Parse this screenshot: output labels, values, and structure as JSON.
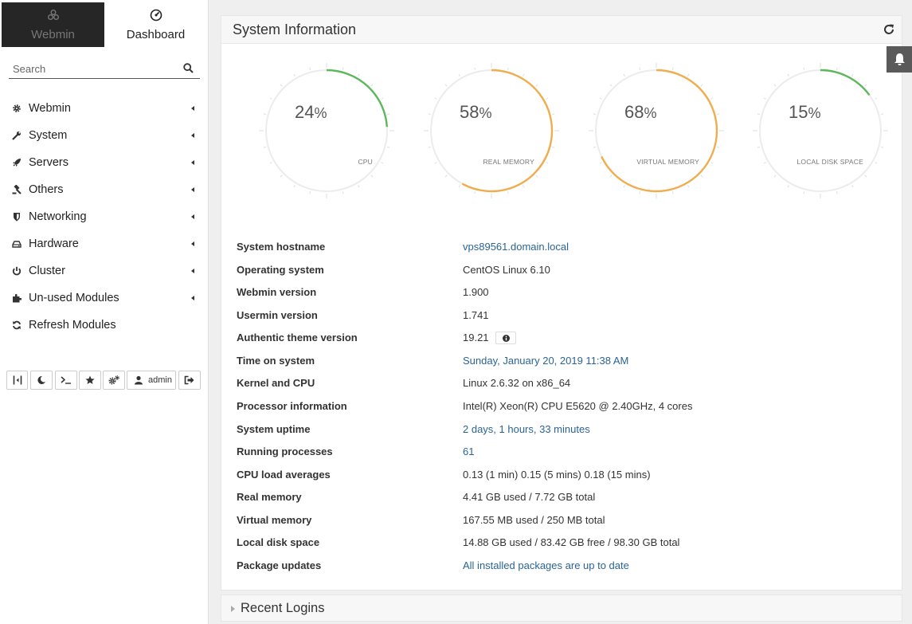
{
  "tabs": {
    "webmin": "Webmin",
    "dashboard": "Dashboard"
  },
  "search": {
    "placeholder": "Search"
  },
  "menu": [
    {
      "label": "Webmin",
      "icon": "gear-icon"
    },
    {
      "label": "System",
      "icon": "wrench-icon"
    },
    {
      "label": "Servers",
      "icon": "rocket-icon"
    },
    {
      "label": "Others",
      "icon": "gavel-icon"
    },
    {
      "label": "Networking",
      "icon": "shield-icon"
    },
    {
      "label": "Hardware",
      "icon": "hdd-icon"
    },
    {
      "label": "Cluster",
      "icon": "power-icon"
    },
    {
      "label": "Un-used Modules",
      "icon": "puzzle-icon"
    },
    {
      "label": "Refresh Modules",
      "icon": "refresh-icon"
    }
  ],
  "toolbar": {
    "user": "admin"
  },
  "panel": {
    "title": "System Information"
  },
  "gauges": [
    {
      "value": "24",
      "pct": "%",
      "label": "CPU",
      "percent": 24,
      "color": "#5cb85c"
    },
    {
      "value": "58",
      "pct": "%",
      "label": "REAL MEMORY",
      "percent": 58,
      "color": "#f0ad4e"
    },
    {
      "value": "68",
      "pct": "%",
      "label": "VIRTUAL MEMORY",
      "percent": 68,
      "color": "#f0ad4e"
    },
    {
      "value": "15",
      "pct": "%",
      "label": "LOCAL DISK SPACE",
      "percent": 15,
      "color": "#5cb85c"
    }
  ],
  "info": [
    {
      "key": "System hostname",
      "value": "vps89561.domain.local",
      "link": true
    },
    {
      "key": "Operating system",
      "value": "CentOS Linux 6.10",
      "link": false
    },
    {
      "key": "Webmin version",
      "value": "1.900",
      "link": false
    },
    {
      "key": "Usermin version",
      "value": "1.741",
      "link": false
    },
    {
      "key": "Authentic theme version",
      "value": "19.21",
      "link": false
    },
    {
      "key": "Time on system",
      "value": "Sunday, January 20, 2019 11:38 AM",
      "link": true
    },
    {
      "key": "Kernel and CPU",
      "value": "Linux 2.6.32 on x86_64",
      "link": false
    },
    {
      "key": "Processor information",
      "value": "Intel(R) Xeon(R) CPU E5620 @ 2.40GHz, 4 cores",
      "link": false
    },
    {
      "key": "System uptime",
      "value": "2 days, 1 hours, 33 minutes",
      "link": true
    },
    {
      "key": "Running processes",
      "value": "61",
      "link": true
    },
    {
      "key": "CPU load averages",
      "value": "0.13 (1 min) 0.15 (5 mins) 0.18 (15 mins)",
      "link": false
    },
    {
      "key": "Real memory",
      "value": "4.41 GB used / 7.72 GB total",
      "link": false
    },
    {
      "key": "Virtual memory",
      "value": "167.55 MB used / 250 MB total",
      "link": false
    },
    {
      "key": "Local disk space",
      "value": "14.88 GB used / 83.42 GB free / 98.30 GB total",
      "link": false
    },
    {
      "key": "Package updates",
      "value": "All installed packages are up to date",
      "link": true
    }
  ],
  "recent": {
    "title": "Recent Logins"
  }
}
